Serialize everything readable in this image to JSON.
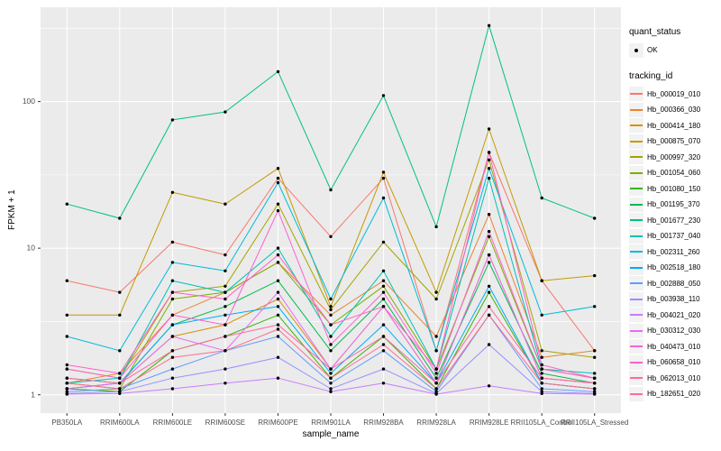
{
  "figure": {
    "xlabel": "sample_name",
    "ylabel": "FPKM + 1",
    "legend": {
      "quant_status_title": "quant_status",
      "quant_status_items": [
        {
          "label": "OK",
          "marker": "point",
          "color": "#000000"
        }
      ],
      "tracking_id_title": "tracking_id"
    },
    "colors": {
      "panel_bg": "#EBEBEB",
      "grid": "#FFFFFF",
      "tick_text": "#4D4D4D",
      "tick_mark": "#333333",
      "legend_key_bg": "#F2F2F2",
      "point": "#000000"
    }
  },
  "chart_data": {
    "type": "line",
    "title": "",
    "xlabel": "sample_name",
    "ylabel": "FPKM + 1",
    "y_scale": "log10",
    "y_ticks": [
      1,
      10,
      100
    ],
    "ylim": [
      0.75,
      440
    ],
    "grid": true,
    "legend_position": "right",
    "point_marker": {
      "label": "OK",
      "color": "#000000"
    },
    "categories": [
      "PB350LA",
      "RRIM600LA",
      "RRIM600LE",
      "RRIM600SE",
      "RRIM600PE",
      "RRIM901LA",
      "RRIM928BA",
      "RRIM928LA",
      "RRIM928LE",
      "RRII105LA_Control",
      "RRII105LA_Stressed"
    ],
    "series": [
      {
        "name": "Hb_000019_010",
        "color": "#F8766D",
        "values": [
          6,
          5,
          11,
          9,
          30,
          12,
          30,
          2,
          45,
          6,
          2
        ]
      },
      {
        "name": "Hb_000366_030",
        "color": "#EA8331",
        "values": [
          1.2,
          1.4,
          3.5,
          5,
          8,
          3.5,
          6,
          2.5,
          17,
          1.8,
          2
        ]
      },
      {
        "name": "Hb_000414_180",
        "color": "#D89000",
        "values": [
          1.1,
          1.2,
          2.5,
          3,
          4.5,
          1.5,
          4,
          1.2,
          9,
          1.3,
          1.2
        ]
      },
      {
        "name": "Hb_000875_070",
        "color": "#C49A00",
        "values": [
          3.5,
          3.5,
          24,
          20,
          35,
          4,
          33,
          5,
          65,
          6,
          6.5
        ]
      },
      {
        "name": "Hb_000997_320",
        "color": "#A3A500",
        "values": [
          1.5,
          1.3,
          5,
          5.5,
          20,
          3.8,
          11,
          4.5,
          40,
          2,
          1.8
        ]
      },
      {
        "name": "Hb_001054_060",
        "color": "#7CAE00",
        "values": [
          1.2,
          1.1,
          4.5,
          5,
          8,
          3,
          5.5,
          1.5,
          12,
          1.5,
          1.3
        ]
      },
      {
        "name": "Hb_001080_150",
        "color": "#39B600",
        "values": [
          1.1,
          1.05,
          2,
          2.5,
          3.5,
          1.3,
          2.5,
          1.1,
          5,
          1.2,
          1.1
        ]
      },
      {
        "name": "Hb_001195_370",
        "color": "#00BB4E",
        "values": [
          1.3,
          1.2,
          3,
          4,
          6,
          2,
          4.5,
          1.3,
          8,
          1.4,
          1.2
        ]
      },
      {
        "name": "Hb_001677_230",
        "color": "#00C087",
        "values": [
          20,
          16,
          75,
          85,
          160,
          25,
          110,
          14,
          330,
          22,
          16
        ]
      },
      {
        "name": "Hb_001737_040",
        "color": "#00C0B8",
        "values": [
          1.2,
          1.3,
          6,
          5,
          10,
          2.5,
          7,
          1.5,
          30,
          1.5,
          1.4
        ]
      },
      {
        "name": "Hb_002311_260",
        "color": "#00BBDA",
        "values": [
          2.5,
          2,
          8,
          7,
          28,
          4.5,
          22,
          2,
          35,
          3.5,
          4
        ]
      },
      {
        "name": "Hb_002518_180",
        "color": "#00ACFC",
        "values": [
          1.1,
          1.2,
          3,
          3.5,
          4,
          1.4,
          3,
          1.2,
          5.5,
          1.2,
          1.1
        ]
      },
      {
        "name": "Hb_002888_050",
        "color": "#619CFF",
        "values": [
          1.05,
          1.1,
          1.5,
          2,
          2.5,
          1.2,
          2,
          1.05,
          3.5,
          1.1,
          1.05
        ]
      },
      {
        "name": "Hb_003938_110",
        "color": "#9590FF",
        "values": [
          1.02,
          1.05,
          1.3,
          1.5,
          1.8,
          1.1,
          1.5,
          1.02,
          2.2,
          1.05,
          1.02
        ]
      },
      {
        "name": "Hb_004021_020",
        "color": "#C77CFF",
        "values": [
          1.01,
          1.02,
          1.1,
          1.2,
          1.3,
          1.05,
          1.2,
          1.01,
          1.15,
          1.02,
          1.01
        ]
      },
      {
        "name": "Hb_030312_030",
        "color": "#E76BF3",
        "values": [
          1.1,
          1.2,
          2.5,
          2,
          5,
          1.5,
          4,
          1.2,
          9,
          1.3,
          1.2
        ]
      },
      {
        "name": "Hb_040473_010",
        "color": "#FD61D1",
        "values": [
          1.5,
          1.3,
          3.5,
          3,
          18,
          2.2,
          5,
          1.4,
          13,
          1.5,
          1.3
        ]
      },
      {
        "name": "Hb_060658_010",
        "color": "#FF61C7",
        "values": [
          1.6,
          1.4,
          5,
          4.5,
          9,
          3,
          4,
          1.5,
          45,
          1.6,
          1.3
        ]
      },
      {
        "name": "Hb_062013_010",
        "color": "#FF67A4",
        "values": [
          1.3,
          1.2,
          2,
          2.5,
          3,
          1.5,
          2.5,
          1.2,
          4,
          1.3,
          1.2
        ]
      },
      {
        "name": "Hb_182651_020",
        "color": "#FF6C91",
        "values": [
          1.2,
          1.1,
          1.8,
          2,
          2.8,
          1.3,
          2.2,
          1.1,
          3.5,
          1.2,
          1.1
        ]
      }
    ]
  }
}
